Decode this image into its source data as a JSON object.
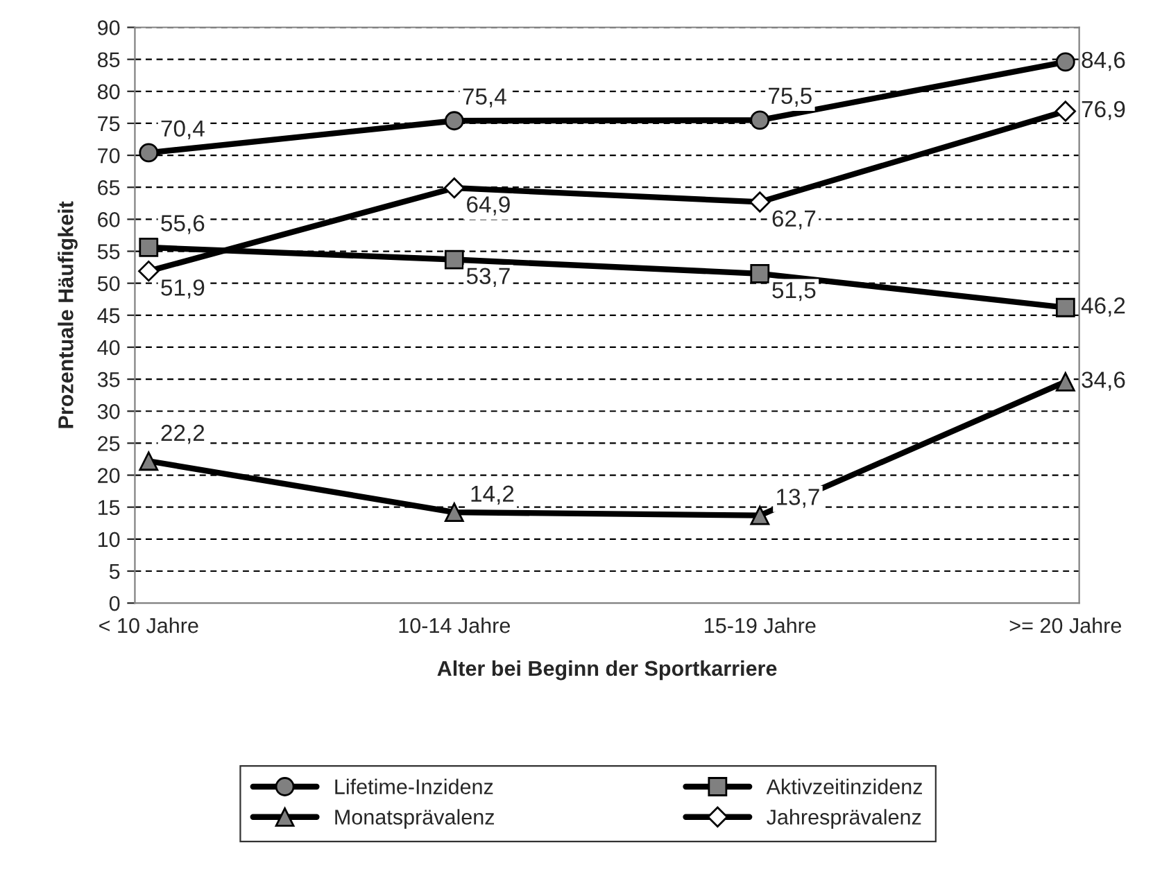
{
  "chart_data": {
    "type": "line",
    "xlabel": "Alter bei Beginn der Sportkarriere",
    "ylabel": "Prozentuale Häufigkeit",
    "categories": [
      "< 10 Jahre",
      "10-14 Jahre",
      "15-19 Jahre",
      ">= 20 Jahre"
    ],
    "series": [
      {
        "name": "Lifetime-Inzidenz",
        "color": "#000000",
        "marker": "circle",
        "values": [
          70.4,
          75.4,
          75.5,
          84.6
        ],
        "value_labels": [
          "70,4",
          "75,4",
          "75,5",
          "84,6"
        ]
      },
      {
        "name": "Aktivzeitinzidenz",
        "color": "#000000",
        "marker": "square",
        "values": [
          55.6,
          53.7,
          51.5,
          46.2
        ],
        "value_labels": [
          "55,6",
          "53,7",
          "51,5",
          "46,2"
        ]
      },
      {
        "name": "Monatsprävalenz",
        "color": "#000000",
        "marker": "triangle",
        "values": [
          22.2,
          14.2,
          13.7,
          34.6
        ],
        "value_labels": [
          "22,2",
          "14,2",
          "13,7",
          "34,6"
        ]
      },
      {
        "name": "Jahresprävalenz",
        "color": "#000000",
        "marker": "diamond",
        "values": [
          51.9,
          64.9,
          62.7,
          76.9
        ],
        "value_labels": [
          "51,9",
          "64,9",
          "62,7",
          "76,9"
        ]
      }
    ],
    "ylim": [
      0,
      90
    ],
    "yticks": [
      0,
      5,
      10,
      15,
      20,
      25,
      30,
      35,
      40,
      45,
      50,
      55,
      60,
      65,
      70,
      75,
      80,
      85,
      90
    ],
    "grid": "y",
    "legend": "bottom",
    "line_style": "solid"
  }
}
